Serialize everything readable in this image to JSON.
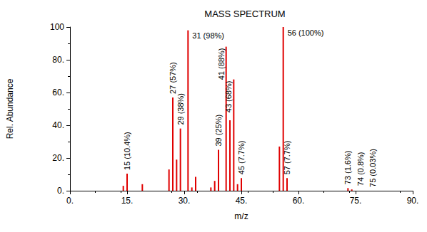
{
  "chart_data": {
    "type": "bar",
    "title": "MASS SPECTRUM",
    "x_label": "m/z",
    "y_label": "Rel. Abundance",
    "x": [
      14,
      15,
      19,
      26,
      27,
      28,
      29,
      31,
      32,
      33,
      37,
      38,
      39,
      41,
      42,
      43,
      44,
      45,
      55,
      56,
      57,
      73,
      74,
      75
    ],
    "values": [
      3,
      10.4,
      4,
      13,
      57,
      19,
      38,
      98,
      2,
      8.5,
      2,
      6,
      25,
      88,
      43,
      68,
      4,
      7.7,
      27,
      100,
      7.7,
      1.6,
      0.8,
      0.03
    ],
    "color": "#e00000",
    "xlim": [
      0,
      90
    ],
    "xticks": [
      {
        "value": 0,
        "label": "0."
      },
      {
        "value": 15,
        "label": "15."
      },
      {
        "value": 30,
        "label": "30."
      },
      {
        "value": 45,
        "label": "45."
      },
      {
        "value": 60,
        "label": "60."
      },
      {
        "value": 75,
        "label": "75."
      },
      {
        "value": 90,
        "label": "90."
      }
    ],
    "ylim": [
      0,
      100
    ],
    "yticks": [
      {
        "value": 0,
        "label": "0."
      },
      {
        "value": 20,
        "label": "20."
      },
      {
        "value": 40,
        "label": "40."
      },
      {
        "value": 60,
        "label": "60."
      },
      {
        "value": 80,
        "label": "80."
      },
      100
    ],
    "grid": false,
    "annotations": [
      {
        "x": 15,
        "y": 10.4,
        "text": "15 (10.4%)"
      },
      {
        "x": 27,
        "y": 57,
        "text": "27 (57%)"
      },
      {
        "x": 29,
        "y": 38,
        "text": "29 (38%)"
      },
      {
        "x": 31,
        "y": 98,
        "text": "31 (98%)"
      },
      {
        "x": 39,
        "y": 25,
        "text": "39 (25%)"
      },
      {
        "x": 41,
        "y": 88,
        "text": "41 (88%)"
      },
      {
        "x": 43,
        "y": 68,
        "text": "43 (68%)"
      },
      {
        "x": 45,
        "y": 7.7,
        "text": "45 (7.7%)"
      },
      {
        "x": 56,
        "y": 100,
        "text": "56 (100%)"
      },
      {
        "x": 57,
        "y": 7.7,
        "text": "57 (7.7%)"
      },
      {
        "x": 73,
        "y": 1.6,
        "text": "73 (1.6%)"
      },
      {
        "x": 74,
        "y": 0.8,
        "text": "74 (0.8%)"
      },
      {
        "x": 75,
        "y": 0.03,
        "text": "75 (0.03%)"
      }
    ]
  }
}
